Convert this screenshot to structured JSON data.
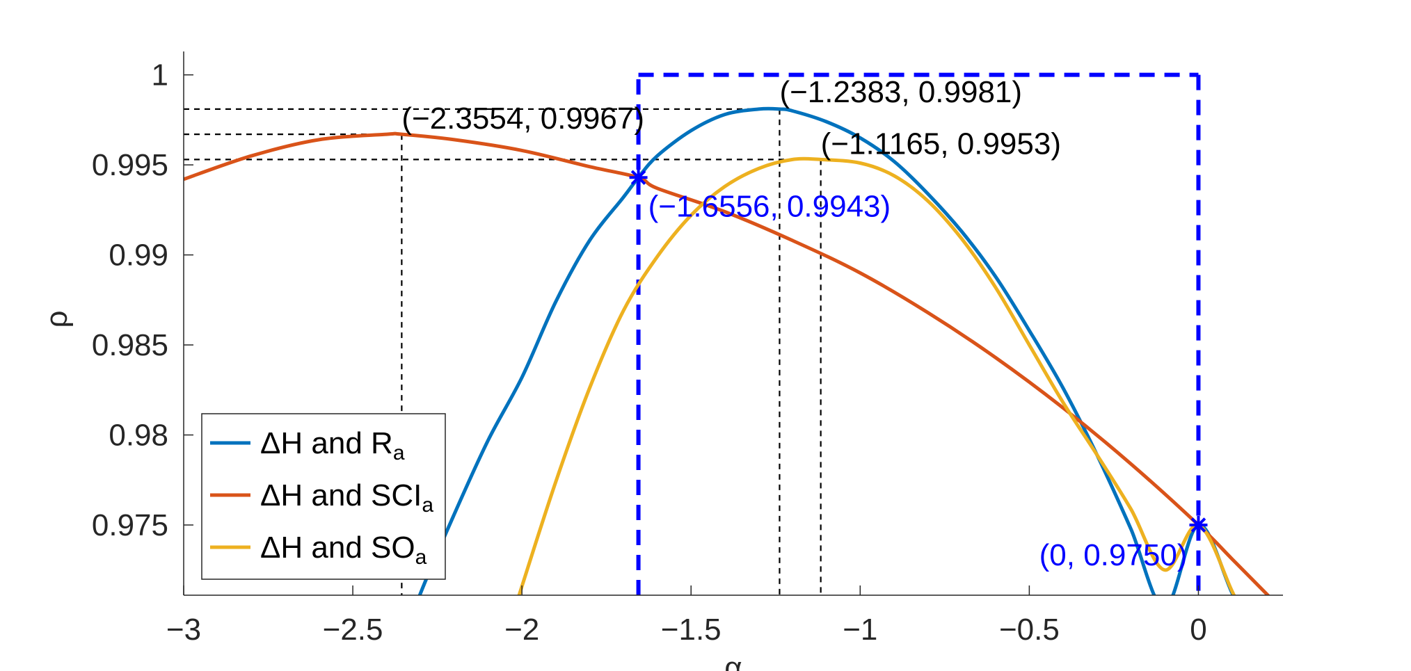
{
  "chart_data": {
    "type": "line",
    "xlabel": "α",
    "ylabel": "ρ",
    "xlim": [
      -3,
      0.25
    ],
    "ylim": [
      0.9711,
      1.0013
    ],
    "xticks": [
      -3,
      -2.5,
      -2,
      -1.5,
      -1,
      -0.5,
      0
    ],
    "xtick_labels": [
      "−3",
      "−2.5",
      "−2",
      "−1.5",
      "−1",
      "−0.5",
      "0"
    ],
    "yticks": [
      0.975,
      0.98,
      0.985,
      0.99,
      0.995,
      1
    ],
    "ytick_labels": [
      "0.975",
      "0.98",
      "0.985",
      "0.99",
      "0.995",
      "1"
    ],
    "grid": false,
    "legend_position": "bottom-left",
    "series": [
      {
        "name": "ΔH and R",
        "name_sub": "a",
        "color": "#0072BD",
        "x": [
          -2.4,
          -2.3,
          -2.2,
          -2.1,
          -2.0,
          -1.9,
          -1.8,
          -1.7,
          -1.6556,
          -1.6,
          -1.5,
          -1.4,
          -1.3,
          -1.2383,
          -1.2,
          -1.1,
          -1.0,
          -0.9,
          -0.8,
          -0.7,
          -0.6,
          -0.5,
          -0.4,
          -0.3,
          -0.2,
          -0.1,
          0.0,
          0.1,
          0.2
        ],
        "y": [
          0.9662,
          0.9712,
          0.9756,
          0.9797,
          0.9832,
          0.9874,
          0.9908,
          0.9932,
          0.9943,
          0.9955,
          0.9969,
          0.9978,
          0.9981,
          0.9981,
          0.998,
          0.9974,
          0.9965,
          0.9952,
          0.9934,
          0.9913,
          0.9888,
          0.9858,
          0.9826,
          0.9789,
          0.9748,
          0.9704,
          0.975,
          0.9712,
          0.967
        ]
      },
      {
        "name": "ΔH and SCI",
        "name_sub": "a",
        "color": "#D95319",
        "x": [
          -3.0,
          -2.8,
          -2.6,
          -2.4,
          -2.3554,
          -2.2,
          -2.0,
          -1.8,
          -1.6556,
          -1.6,
          -1.4,
          -1.2,
          -1.0,
          -0.8,
          -0.6,
          -0.4,
          -0.2,
          0.0,
          0.1,
          0.2,
          0.25
        ],
        "y": [
          0.9942,
          0.9955,
          0.9964,
          0.9967,
          0.9967,
          0.9964,
          0.9958,
          0.9949,
          0.9943,
          0.9937,
          0.9924,
          0.9908,
          0.989,
          0.9868,
          0.9843,
          0.9815,
          0.9784,
          0.975,
          0.9731,
          0.9712,
          0.9702
        ]
      },
      {
        "name": "ΔH and SO",
        "name_sub": "a",
        "color": "#EDB120",
        "x": [
          -2.05,
          -2.0,
          -1.9,
          -1.8,
          -1.7,
          -1.6,
          -1.5,
          -1.4,
          -1.3,
          -1.2,
          -1.1165,
          -1.0,
          -0.9,
          -0.8,
          -0.7,
          -0.6,
          -0.5,
          -0.4,
          -0.3,
          -0.2,
          -0.1,
          0.0,
          0.1,
          0.15
        ],
        "y": [
          0.9686,
          0.9716,
          0.9774,
          0.9826,
          0.9869,
          0.9899,
          0.9922,
          0.9938,
          0.9948,
          0.9953,
          0.9953,
          0.9951,
          0.9944,
          0.993,
          0.9909,
          0.9882,
          0.985,
          0.9818,
          0.9789,
          0.9759,
          0.9725,
          0.975,
          0.9713,
          0.9692
        ]
      }
    ],
    "annotations": [
      {
        "text": "(−2.3554, 0.9967)",
        "x": -2.3554,
        "y": 0.9967,
        "color": "#000000"
      },
      {
        "text": "(−1.2383, 0.9981)",
        "x": -1.2383,
        "y": 0.9981,
        "color": "#000000"
      },
      {
        "text": "(−1.1165, 0.9953)",
        "x": -1.1165,
        "y": 0.9953,
        "color": "#000000"
      },
      {
        "text": "(−1.6556, 0.9943)",
        "x": -1.6556,
        "y": 0.9943,
        "color": "#0000ff"
      },
      {
        "text": "(0, 0.9750)",
        "x": 0,
        "y": 0.975,
        "color": "#0000ff"
      }
    ],
    "highlight_box": {
      "x0": -1.6556,
      "x1": 0,
      "y_top": 1,
      "color": "#0000ff"
    }
  }
}
